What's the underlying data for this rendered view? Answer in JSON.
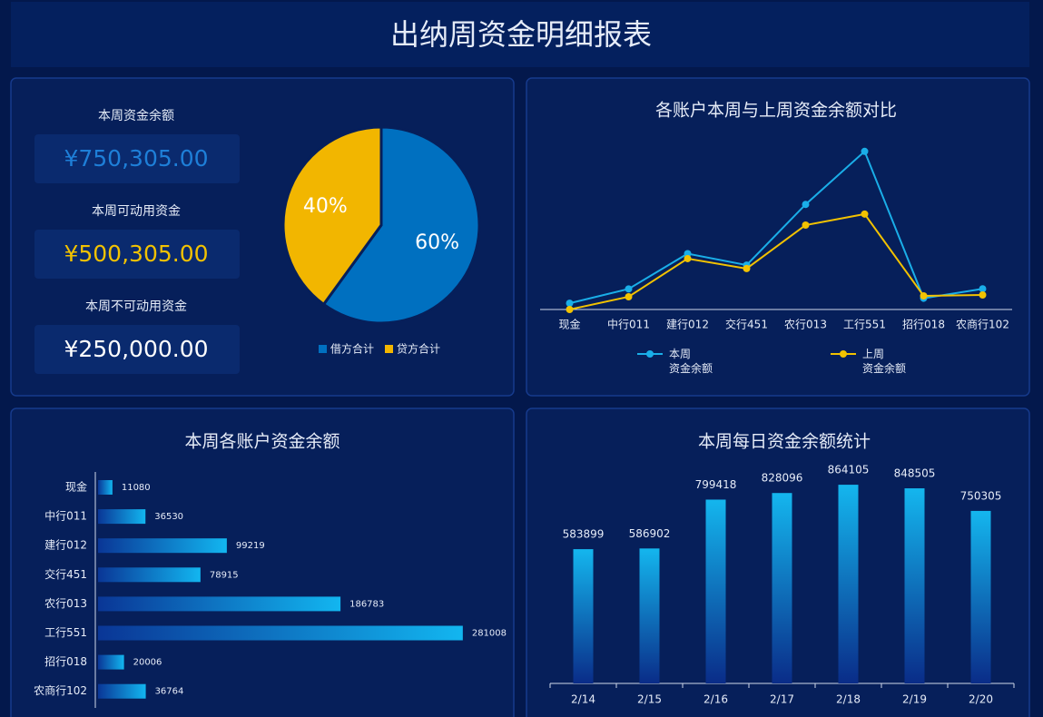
{
  "title": "出纳周资金明细报表",
  "kpis": [
    {
      "label": "本周资金余额",
      "value": "¥750,305.00",
      "color": "#1e7fd8"
    },
    {
      "label": "本周可动用资金",
      "value": "¥500,305.00",
      "color": "#f2c200"
    },
    {
      "label": "本周不可动用资金",
      "value": "¥250,000.00",
      "color": "#ffffff"
    }
  ],
  "chart_data": [
    {
      "type": "pie",
      "categories": [
        "借方合计",
        "贷方合计"
      ],
      "values": [
        60,
        40
      ],
      "value_labels": [
        "60%",
        "40%"
      ],
      "colors": [
        "#0070c0",
        "#f2b600"
      ]
    },
    {
      "type": "line",
      "title": "各账户本周与上周资金余额对比",
      "categories": [
        "现金",
        "中行011",
        "建行012",
        "交行451",
        "农行013",
        "工行551",
        "招行018",
        "农商行102"
      ],
      "series": [
        {
          "name": "本周\n资金余额",
          "color": "#1aaee8",
          "values": [
            11080,
            36530,
            99219,
            78915,
            186783,
            281008,
            20006,
            36764
          ]
        },
        {
          "name": "上周\n资金余额",
          "color": "#f2c200",
          "values": [
            0,
            22600,
            90400,
            72700,
            150000,
            169600,
            24200,
            25800
          ]
        }
      ],
      "ylim": [
        0,
        300000
      ]
    },
    {
      "type": "hbar",
      "title": "本周各账户资金余额",
      "categories": [
        "现金",
        "中行011",
        "建行012",
        "交行451",
        "农行013",
        "工行551",
        "招行018",
        "农商行102"
      ],
      "values": [
        11080,
        36530,
        99219,
        78915,
        186783,
        281008,
        20006,
        36764
      ],
      "xlim": [
        0,
        300000
      ]
    },
    {
      "type": "bar",
      "title": "本周每日资金余额统计",
      "categories": [
        "2/14",
        "2/15",
        "2/16",
        "2/17",
        "2/18",
        "2/19",
        "2/20"
      ],
      "values": [
        583899,
        586902,
        799418,
        828096,
        864105,
        848505,
        750305
      ],
      "ylim": [
        0,
        900000
      ]
    }
  ]
}
